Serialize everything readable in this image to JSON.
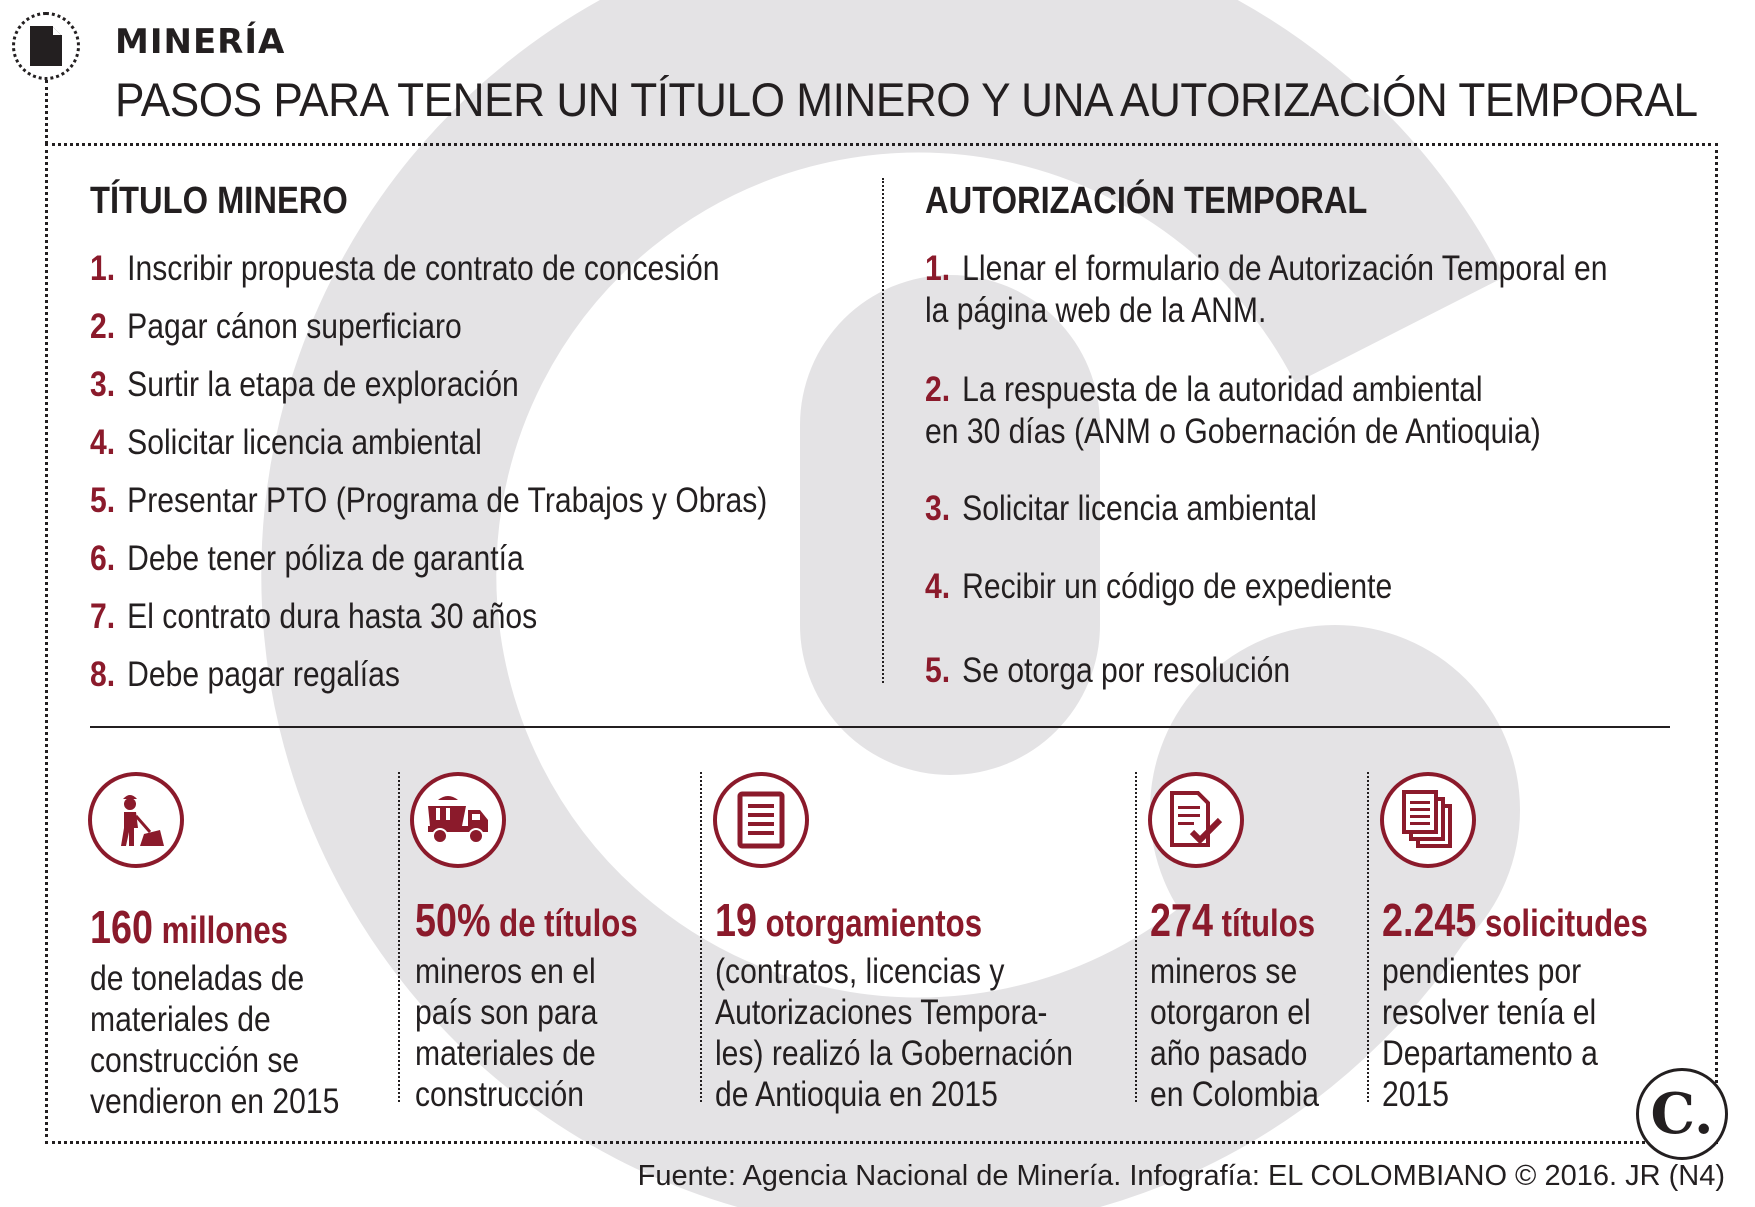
{
  "header": {
    "kicker": "MINERÍA",
    "headline": "PASOS PARA TENER UN TÍTULO MINERO Y UNA AUTORIZACIÓN TEMPORAL",
    "icon": "document-icon"
  },
  "titulo": {
    "title": "TÍTULO MINERO",
    "steps": [
      {
        "num": "1.",
        "text": "Inscribir propuesta de contrato de concesión"
      },
      {
        "num": "2.",
        "text": "Pagar cánon superficiaro"
      },
      {
        "num": "3.",
        "text": "Surtir la etapa de exploración"
      },
      {
        "num": "4.",
        "text": "Solicitar licencia ambiental"
      },
      {
        "num": "5.",
        "text": "Presentar PTO (Programa de Trabajos y Obras)"
      },
      {
        "num": "6.",
        "text": "Debe tener póliza de garantía"
      },
      {
        "num": "7.",
        "text": "El contrato dura hasta 30 años"
      },
      {
        "num": "8.",
        "text": "Debe pagar regalías"
      }
    ]
  },
  "autorizacion": {
    "title": "AUTORIZACIÓN TEMPORAL",
    "steps": [
      {
        "num": "1.",
        "line1": "Llenar el formulario de Autorización Temporal en",
        "line2": "la página web de la ANM."
      },
      {
        "num": "2.",
        "line1": "La respuesta de la autoridad ambiental",
        "line2": "en 30 días (ANM o Gobernación de Antioquia)"
      },
      {
        "num": "3.",
        "line1": "Solicitar licencia ambiental",
        "line2": ""
      },
      {
        "num": "4.",
        "line1": "Recibir un código de expediente",
        "line2": ""
      },
      {
        "num": "5.",
        "line1": "Se otorga por resolución",
        "line2": ""
      }
    ]
  },
  "stats": [
    {
      "icon": "miner-shovel-icon",
      "number": "160",
      "unit": " millones",
      "lines": [
        "de toneladas de",
        "materiales de",
        "construcción se",
        "vendieron en 2015"
      ]
    },
    {
      "icon": "dump-truck-icon",
      "number": "50%",
      "unit": " de títulos",
      "lines": [
        "mineros en el",
        "país son para",
        "materiales de",
        "construcción"
      ]
    },
    {
      "icon": "list-document-icon",
      "number": "19",
      "unit": " otorgamientos",
      "lines": [
        "(contratos, licencias y",
        "Autorizaciones Tempora-",
        "les) realizó la Gobernación",
        "de Antioquia en 2015"
      ]
    },
    {
      "icon": "checked-document-icon",
      "number": "274",
      "unit": " títulos",
      "lines": [
        "mineros se",
        "otorgaron el",
        "año pasado",
        "en Colombia"
      ]
    },
    {
      "icon": "stacked-documents-icon",
      "number": "2.245",
      "unit": " solicitudes",
      "lines": [
        "pendientes por",
        "resolver tenía el",
        "Departamento a",
        "2015"
      ]
    }
  ],
  "logo": "C.",
  "source": "Fuente: Agencia Nacional de Minería. Infografía: EL COLOMBIANO © 2016. JR (N4)",
  "colors": {
    "accent": "#8b1a2b",
    "text": "#231f20",
    "watermark": "#e4e3e5"
  }
}
